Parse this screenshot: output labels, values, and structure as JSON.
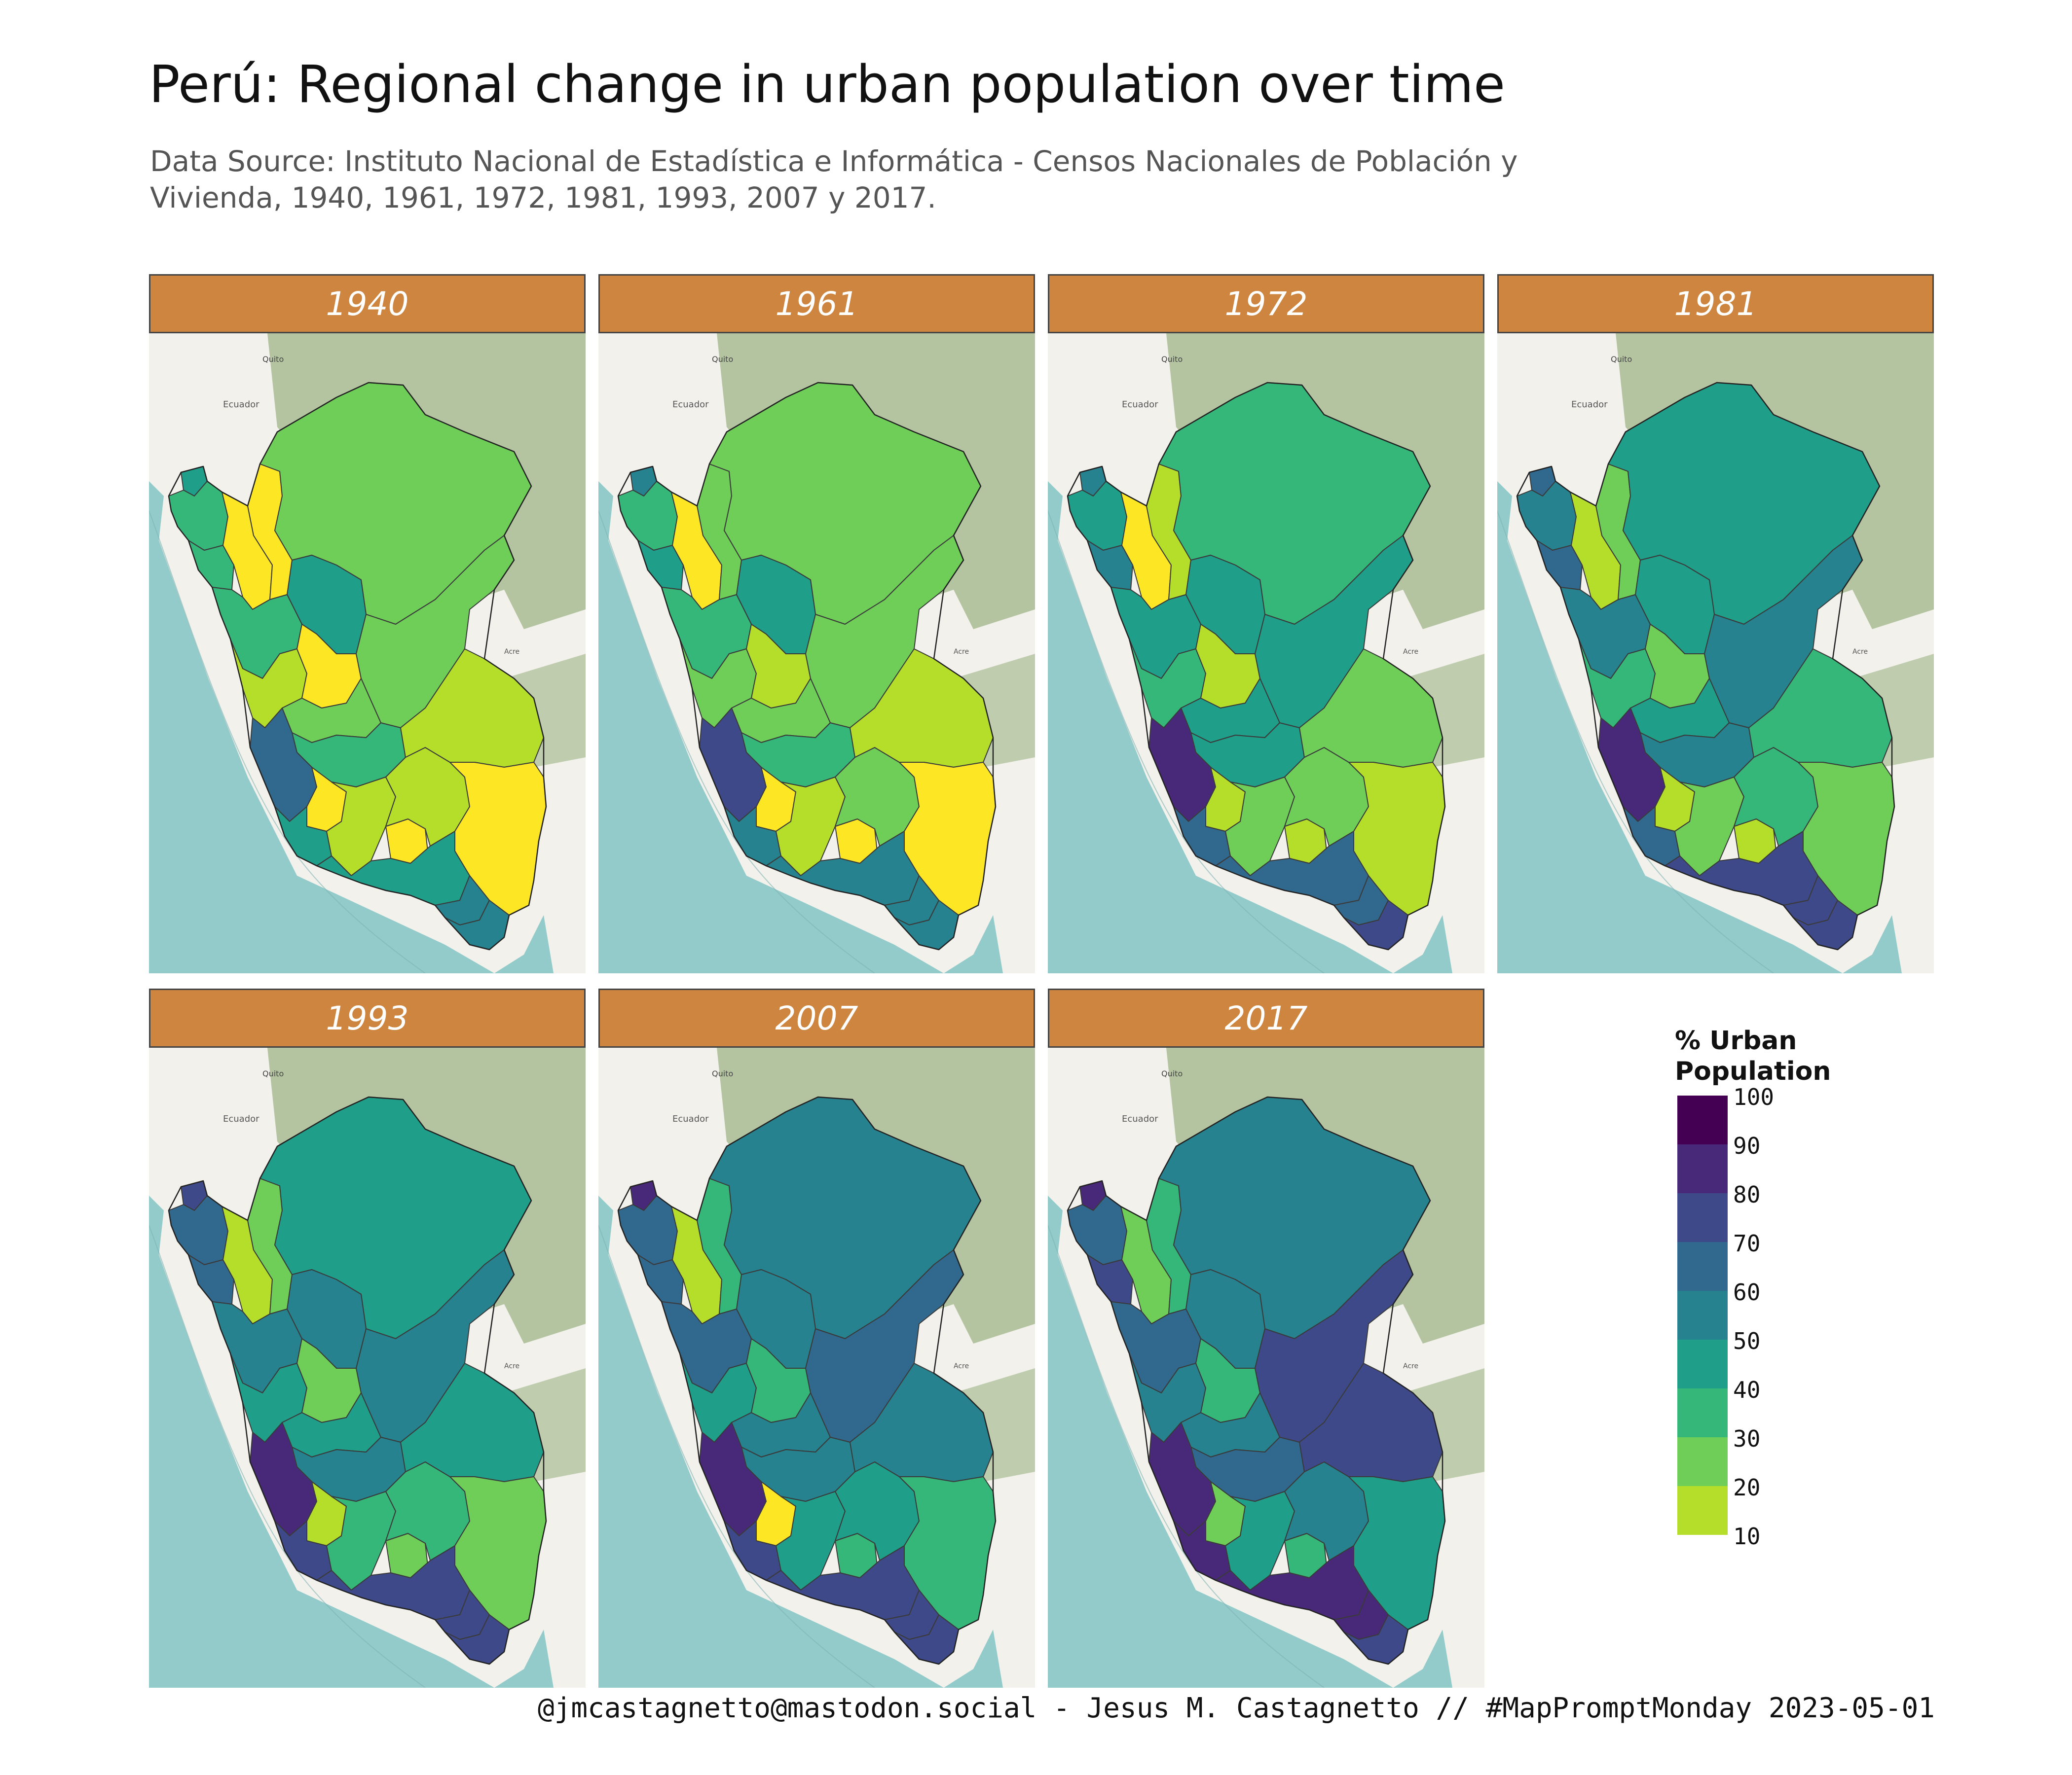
{
  "title": "Perú: Regional change in urban population over time",
  "subtitle": "Data Source: Instituto Nacional de Estadística e Informática - Censos Nacionales de Población y Vivienda, 1940, 1961, 1972, 1981, 1993, 2007 y 2017.",
  "caption": "@jmcastagnetto@mastodon.social - Jesus M. Castagnetto // #MapPromptMonday 2023-05-01",
  "basemap_labels": {
    "country": "Ecuador",
    "city": "Quito",
    "region": "Acre"
  },
  "colors": {
    "strip": "#CD853F",
    "ocean": "#93CBCB",
    "land": "#F2F1EC",
    "forest": "#A9BC94",
    "border": "#3a3a3a",
    "scale": [
      "#FDE725",
      "#B5DE2B",
      "#6ECE58",
      "#35B779",
      "#1F9E89",
      "#26828E",
      "#31688E",
      "#3E4989",
      "#482878",
      "#440154"
    ]
  },
  "legend": {
    "title": "% Urban Population",
    "ticks": [
      "100",
      "90",
      "80",
      "70",
      "60",
      "50",
      "40",
      "30",
      "20",
      "10"
    ]
  },
  "facets": [
    {
      "year": "1940",
      "regions": {
        "amazonas": 10,
        "cajamarca": 10,
        "huancavelica": 10,
        "apurimac": 10,
        "ancash": 20,
        "ayacucho": 20,
        "cusco": 20,
        "madre_de_dios": 20,
        "puno": 10,
        "loreto": 30,
        "ucayali": 30,
        "huanuco": 10,
        "pasco": 30,
        "junin": 40,
        "san_martin": 50,
        "lambayeque": 40,
        "piura": 40,
        "la_libertad": 40,
        "lima": 70,
        "ica": 50,
        "arequipa": 50,
        "moquegua": 60,
        "tacna": 60,
        "tumbes": 50
      }
    },
    {
      "year": "1961",
      "regions": {
        "amazonas": 30,
        "cajamarca": 10,
        "huancavelica": 10,
        "apurimac": 10,
        "ancash": 30,
        "ayacucho": 20,
        "cusco": 30,
        "madre_de_dios": 20,
        "puno": 10,
        "loreto": 30,
        "ucayali": 30,
        "huanuco": 20,
        "pasco": 30,
        "junin": 40,
        "san_martin": 50,
        "lambayeque": 50,
        "piura": 40,
        "la_libertad": 40,
        "lima": 80,
        "ica": 60,
        "arequipa": 60,
        "moquegua": 60,
        "tacna": 60,
        "tumbes": 60
      }
    },
    {
      "year": "1972",
      "regions": {
        "amazonas": 20,
        "cajamarca": 10,
        "huancavelica": 20,
        "apurimac": 20,
        "ancash": 40,
        "ayacucho": 30,
        "cusco": 30,
        "madre_de_dios": 30,
        "puno": 20,
        "loreto": 40,
        "ucayali": 50,
        "huanuco": 20,
        "pasco": 50,
        "junin": 50,
        "san_martin": 50,
        "lambayeque": 60,
        "piura": 50,
        "la_libertad": 50,
        "lima": 90,
        "ica": 70,
        "arequipa": 70,
        "moquegua": 70,
        "tacna": 80,
        "tumbes": 60
      }
    },
    {
      "year": "1981",
      "regions": {
        "amazonas": 30,
        "cajamarca": 20,
        "huancavelica": 20,
        "apurimac": 20,
        "ancash": 40,
        "ayacucho": 30,
        "cusco": 40,
        "madre_de_dios": 40,
        "puno": 30,
        "loreto": 50,
        "ucayali": 60,
        "huanuco": 30,
        "pasco": 50,
        "junin": 60,
        "san_martin": 50,
        "lambayeque": 70,
        "piura": 60,
        "la_libertad": 60,
        "lima": 90,
        "ica": 70,
        "arequipa": 80,
        "moquegua": 80,
        "tacna": 80,
        "tumbes": 70
      }
    },
    {
      "year": "1993",
      "regions": {
        "amazonas": 30,
        "cajamarca": 20,
        "huancavelica": 20,
        "apurimac": 30,
        "ancash": 50,
        "ayacucho": 40,
        "cusco": 40,
        "madre_de_dios": 50,
        "puno": 30,
        "loreto": 50,
        "ucayali": 60,
        "huanuco": 30,
        "pasco": 50,
        "junin": 60,
        "san_martin": 60,
        "lambayeque": 70,
        "piura": 70,
        "la_libertad": 60,
        "lima": 90,
        "ica": 80,
        "arequipa": 80,
        "moquegua": 80,
        "tacna": 80,
        "tumbes": 80
      }
    },
    {
      "year": "2007",
      "regions": {
        "amazonas": 40,
        "cajamarca": 20,
        "huancavelica": 10,
        "apurimac": 40,
        "ancash": 50,
        "ayacucho": 50,
        "cusco": 50,
        "madre_de_dios": 60,
        "puno": 40,
        "loreto": 60,
        "ucayali": 70,
        "huanuco": 40,
        "pasco": 60,
        "junin": 60,
        "san_martin": 60,
        "lambayeque": 70,
        "piura": 70,
        "la_libertad": 70,
        "lima": 90,
        "ica": 80,
        "arequipa": 80,
        "moquegua": 80,
        "tacna": 80,
        "tumbes": 90
      }
    },
    {
      "year": "2017",
      "regions": {
        "amazonas": 40,
        "cajamarca": 30,
        "huancavelica": 30,
        "apurimac": 40,
        "ancash": 60,
        "ayacucho": 50,
        "cusco": 60,
        "madre_de_dios": 80,
        "puno": 50,
        "loreto": 60,
        "ucayali": 80,
        "huanuco": 40,
        "pasco": 60,
        "junin": 70,
        "san_martin": 60,
        "lambayeque": 80,
        "piura": 70,
        "la_libertad": 70,
        "lima": 90,
        "ica": 90,
        "arequipa": 90,
        "moquegua": 90,
        "tacna": 80,
        "tumbes": 90
      }
    }
  ]
}
